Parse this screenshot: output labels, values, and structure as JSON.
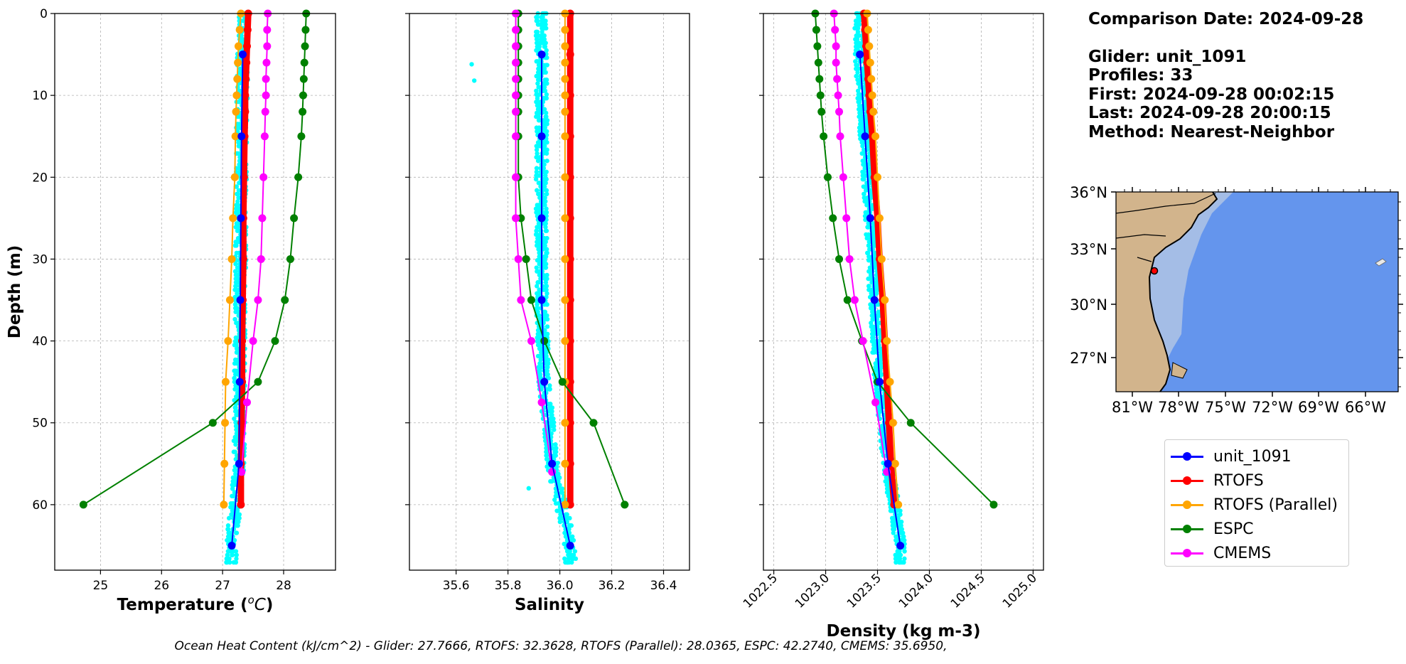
{
  "info": {
    "comparison_date": "Comparison Date: 2024-09-28",
    "glider": "Glider: unit_1091",
    "profiles": "Profiles: 33",
    "first": "First: 2024-09-28 00:02:15",
    "last": "Last: 2024-09-28 20:00:15",
    "method": "Method: Nearest-Neighbor"
  },
  "footer": "Ocean Heat Content (kJ/cm^2) - Glider: 27.7666,  RTOFS: 32.3628,  RTOFS (Parallel): 28.0365,  ESPC: 42.2740,  CMEMS: 35.6950,",
  "colors": {
    "unit_1091": "#0000ff",
    "rtofs": "#ff0000",
    "rtofs_parallel": "#ffa500",
    "espc": "#008000",
    "cmems": "#ff00ff",
    "glider_scatter": "#00ffff",
    "land": "#d2b48c",
    "ocean_deep": "#6495ed",
    "ocean_shelf": "#a4bde6"
  },
  "legend": [
    {
      "label": "unit_1091",
      "color": "#0000ff"
    },
    {
      "label": "RTOFS",
      "color": "#ff0000"
    },
    {
      "label": "RTOFS (Parallel)",
      "color": "#ffa500"
    },
    {
      "label": "ESPC",
      "color": "#008000"
    },
    {
      "label": "CMEMS",
      "color": "#ff00ff"
    }
  ],
  "chart_data": [
    {
      "type": "line",
      "id": "temperature",
      "xlabel": "Temperature (°C)",
      "ylabel": "Depth (m)",
      "xlim": [
        24.25,
        28.85
      ],
      "ylim": [
        68,
        0
      ],
      "xticks": [
        25,
        26,
        27,
        28
      ],
      "yticks": [
        0,
        10,
        20,
        30,
        40,
        50,
        60
      ],
      "grid": true,
      "series": [
        {
          "name": "unit_1091",
          "y": [
            5,
            15,
            25,
            35,
            45,
            55,
            65
          ],
          "x": [
            27.33,
            27.31,
            27.3,
            27.29,
            27.28,
            27.27,
            27.15
          ]
        },
        {
          "name": "RTOFS",
          "y": [
            0,
            2,
            4,
            6,
            8,
            10,
            12,
            15,
            20,
            25,
            30,
            35,
            40,
            45,
            50,
            55,
            60
          ],
          "x": [
            27.42,
            27.41,
            27.4,
            27.39,
            27.38,
            27.37,
            27.37,
            27.36,
            27.35,
            27.34,
            27.34,
            27.33,
            27.32,
            27.32,
            27.31,
            27.3,
            27.3
          ]
        },
        {
          "name": "RTOFS (Parallel)",
          "y": [
            0,
            2,
            4,
            6,
            8,
            10,
            12,
            15,
            20,
            25,
            30,
            35,
            40,
            45,
            50,
            55,
            60
          ],
          "x": [
            27.3,
            27.28,
            27.26,
            27.25,
            27.24,
            27.23,
            27.22,
            27.21,
            27.2,
            27.17,
            27.15,
            27.12,
            27.09,
            27.05,
            27.04,
            27.03,
            27.02
          ]
        },
        {
          "name": "ESPC",
          "y": [
            0,
            2,
            4,
            6,
            8,
            10,
            12,
            15,
            20,
            25,
            30,
            35,
            40,
            45,
            50,
            60
          ],
          "x": [
            28.37,
            28.36,
            28.35,
            28.34,
            28.33,
            28.32,
            28.31,
            28.29,
            28.24,
            28.17,
            28.11,
            28.02,
            27.86,
            27.58,
            26.84,
            24.72
          ]
        },
        {
          "name": "CMEMS",
          "y": [
            0,
            2,
            4,
            6,
            8,
            10,
            12,
            15,
            20,
            25,
            30,
            35,
            40,
            47.5,
            56
          ],
          "x": [
            27.74,
            27.73,
            27.73,
            27.72,
            27.71,
            27.71,
            27.7,
            27.69,
            27.67,
            27.65,
            27.63,
            27.58,
            27.5,
            27.4,
            27.31
          ]
        }
      ]
    },
    {
      "type": "line",
      "id": "salinity",
      "xlabel": "Salinity",
      "ylabel": "",
      "xlim": [
        35.42,
        36.5
      ],
      "ylim": [
        68,
        0
      ],
      "xticks": [
        35.6,
        35.8,
        36.0,
        36.2,
        36.4
      ],
      "yticks": [
        0,
        10,
        20,
        30,
        40,
        50,
        60
      ],
      "grid": true,
      "series": [
        {
          "name": "unit_1091",
          "y": [
            5,
            15,
            25,
            35,
            45,
            55,
            65
          ],
          "x": [
            35.93,
            35.93,
            35.93,
            35.93,
            35.94,
            35.97,
            36.04
          ]
        },
        {
          "name": "RTOFS",
          "y": [
            0,
            5,
            10,
            15,
            20,
            25,
            30,
            35,
            40,
            45,
            50,
            55,
            60
          ],
          "x": [
            36.04,
            36.04,
            36.04,
            36.04,
            36.04,
            36.04,
            36.04,
            36.04,
            36.04,
            36.04,
            36.04,
            36.04,
            36.04
          ]
        },
        {
          "name": "RTOFS (Parallel)",
          "y": [
            0,
            2,
            4,
            6,
            8,
            10,
            12,
            15,
            20,
            25,
            30,
            35,
            40,
            45,
            50,
            55,
            60
          ],
          "x": [
            36.02,
            36.02,
            36.02,
            36.02,
            36.02,
            36.02,
            36.02,
            36.02,
            36.02,
            36.02,
            36.02,
            36.02,
            36.02,
            36.02,
            36.02,
            36.02,
            36.02
          ]
        },
        {
          "name": "ESPC",
          "y": [
            0,
            2,
            4,
            6,
            8,
            10,
            12,
            15,
            20,
            25,
            30,
            35,
            40,
            45,
            50,
            60
          ],
          "x": [
            35.84,
            35.84,
            35.84,
            35.84,
            35.84,
            35.84,
            35.84,
            35.84,
            35.84,
            35.85,
            35.87,
            35.89,
            35.94,
            36.01,
            36.13,
            36.25
          ]
        },
        {
          "name": "CMEMS",
          "y": [
            0,
            2,
            4,
            6,
            8,
            10,
            12,
            15,
            20,
            25,
            30,
            35,
            40,
            47.5,
            56
          ],
          "x": [
            35.83,
            35.83,
            35.83,
            35.83,
            35.83,
            35.83,
            35.83,
            35.83,
            35.83,
            35.83,
            35.84,
            35.85,
            35.89,
            35.93,
            35.97
          ]
        }
      ]
    },
    {
      "type": "line",
      "id": "density",
      "xlabel": "Density (kg m-3)",
      "ylabel": "",
      "xlim": [
        1022.4,
        1025.1
      ],
      "ylim": [
        68,
        0
      ],
      "xticks": [
        1022.5,
        1023.0,
        1023.5,
        1024.0,
        1024.5,
        1025.0
      ],
      "yticks": [
        0,
        10,
        20,
        30,
        40,
        50,
        60
      ],
      "grid": true,
      "series": [
        {
          "name": "unit_1091",
          "y": [
            5,
            15,
            25,
            35,
            45,
            55,
            65
          ],
          "x": [
            1023.33,
            1023.38,
            1023.43,
            1023.47,
            1023.52,
            1023.6,
            1023.72
          ]
        },
        {
          "name": "RTOFS",
          "y": [
            0,
            2,
            4,
            6,
            8,
            10,
            12,
            15,
            20,
            25,
            30,
            35,
            40,
            45,
            50,
            55,
            60
          ],
          "x": [
            1023.37,
            1023.38,
            1023.39,
            1023.4,
            1023.41,
            1023.42,
            1023.43,
            1023.45,
            1023.47,
            1023.5,
            1023.52,
            1023.55,
            1023.57,
            1023.59,
            1023.61,
            1023.63,
            1023.66
          ]
        },
        {
          "name": "RTOFS (Parallel)",
          "y": [
            0,
            2,
            4,
            6,
            8,
            10,
            12,
            15,
            20,
            25,
            30,
            35,
            40,
            45,
            50,
            55,
            60
          ],
          "x": [
            1023.4,
            1023.41,
            1023.42,
            1023.43,
            1023.44,
            1023.45,
            1023.46,
            1023.48,
            1023.5,
            1023.52,
            1023.54,
            1023.57,
            1023.59,
            1023.62,
            1023.65,
            1023.67,
            1023.7
          ]
        },
        {
          "name": "ESPC",
          "y": [
            0,
            2,
            4,
            6,
            8,
            10,
            12,
            15,
            20,
            25,
            30,
            35,
            40,
            45,
            50,
            60
          ],
          "x": [
            1022.9,
            1022.91,
            1022.92,
            1022.93,
            1022.94,
            1022.95,
            1022.96,
            1022.98,
            1023.02,
            1023.07,
            1023.13,
            1023.21,
            1023.35,
            1023.5,
            1023.82,
            1024.62
          ]
        },
        {
          "name": "CMEMS",
          "y": [
            0,
            2,
            4,
            6,
            8,
            10,
            12,
            15,
            20,
            25,
            30,
            35,
            40,
            47.5,
            56
          ],
          "x": [
            1023.08,
            1023.09,
            1023.1,
            1023.1,
            1023.11,
            1023.12,
            1023.13,
            1023.14,
            1023.17,
            1023.2,
            1023.23,
            1023.28,
            1023.36,
            1023.48,
            1023.59
          ]
        }
      ]
    }
  ],
  "map": {
    "lat_labels": [
      "36°N",
      "33°N",
      "30°N",
      "27°N"
    ],
    "lon_labels": [
      "81°W",
      "78°W",
      "75°W",
      "72°W",
      "69°W",
      "66°W"
    ],
    "glider_marker": "glider-location"
  }
}
